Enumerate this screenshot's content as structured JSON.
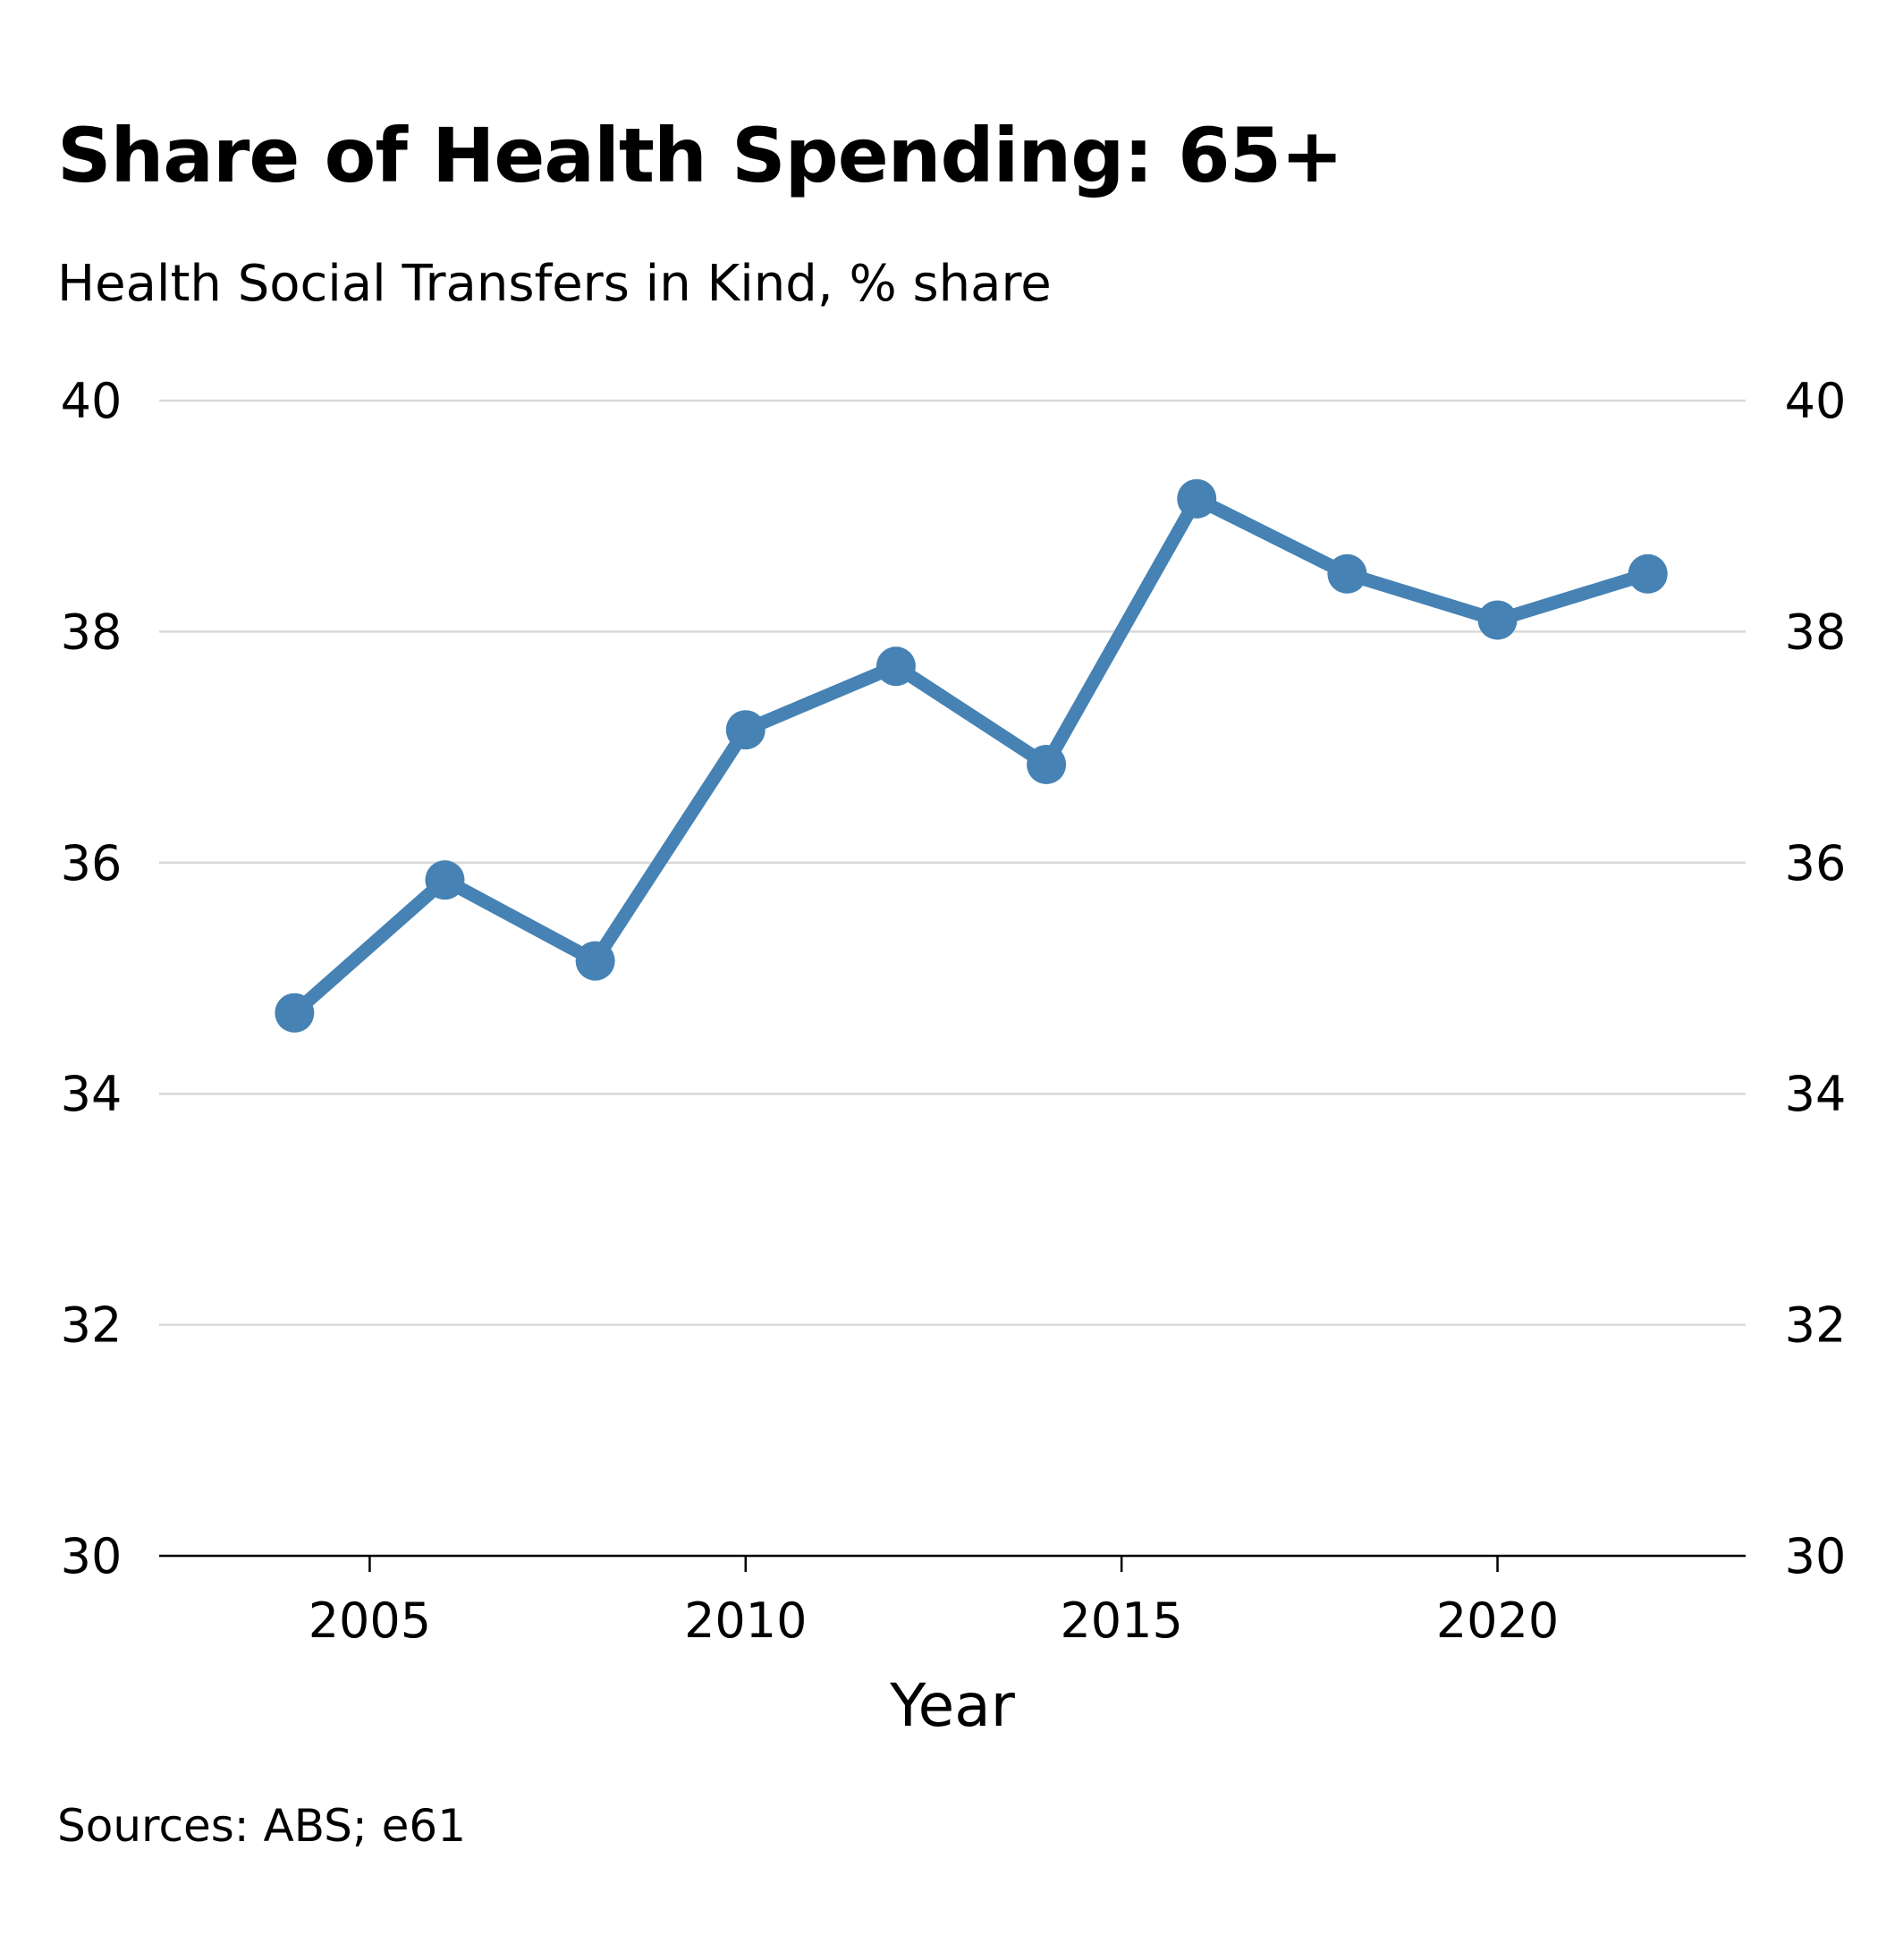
{
  "chart_data": {
    "type": "line",
    "title": "Share of Health Spending: 65+",
    "subtitle": "Health Social Transfers in Kind, % share",
    "source": "Sources: ABS; e61",
    "xlabel": "Year",
    "ylabel": "",
    "xlim": [
      2002.2,
      2023.3
    ],
    "ylim": [
      30,
      40
    ],
    "x_ticks": [
      2005,
      2010,
      2015,
      2020
    ],
    "y_ticks": [
      30,
      32,
      34,
      36,
      38,
      40
    ],
    "grid": "horizontal",
    "y_axis_sides": "left-and-right",
    "series": [
      {
        "color": "#4682b4",
        "markers": true,
        "x": [
          2004,
          2006,
          2008,
          2010,
          2012,
          2014,
          2016,
          2018,
          2020,
          2022
        ],
        "values": [
          34.7,
          35.85,
          35.15,
          37.15,
          37.7,
          36.85,
          39.15,
          38.5,
          38.1,
          38.5
        ]
      }
    ]
  },
  "colors": {
    "line": "#4682b4",
    "grid": "#d9d9d9",
    "axis": "#000000"
  }
}
